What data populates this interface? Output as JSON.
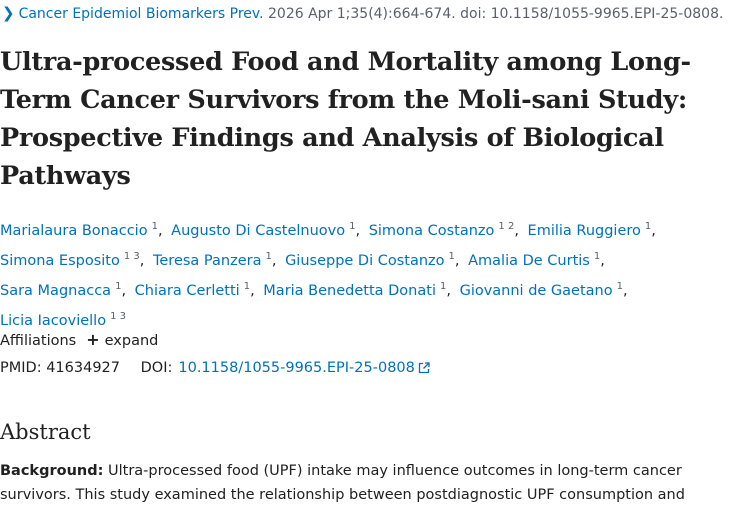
{
  "citation": {
    "journal": "Cancer Epidemiol Biomarkers Prev.",
    "details": "2026 Apr 1;35(4):664-674. doi: 10.1158/1055-9965.EPI-25-0808."
  },
  "title": "Ultra-processed Food and Mortality among Long-Term Cancer Survivors from the Moli-sani Study: Prospective Findings and Analysis of Biological Pathways",
  "authors": [
    {
      "name": "Marialaura Bonaccio",
      "aff": "1"
    },
    {
      "name": "Augusto Di Castelnuovo",
      "aff": "1"
    },
    {
      "name": "Simona Costanzo",
      "aff": "1 2"
    },
    {
      "name": "Emilia Ruggiero",
      "aff": "1"
    },
    {
      "name": "Simona Esposito",
      "aff": "1 3"
    },
    {
      "name": "Teresa Panzera",
      "aff": "1"
    },
    {
      "name": "Giuseppe Di Costanzo",
      "aff": "1"
    },
    {
      "name": "Amalia De Curtis",
      "aff": "1"
    },
    {
      "name": "Sara Magnacca",
      "aff": "1"
    },
    {
      "name": "Chiara Cerletti",
      "aff": "1"
    },
    {
      "name": "Maria Benedetta Donati",
      "aff": "1"
    },
    {
      "name": "Giovanni de Gaetano",
      "aff": "1"
    },
    {
      "name": "Licia Iacoviello",
      "aff": "1 3"
    }
  ],
  "affiliations": {
    "label": "Affiliations",
    "expand": "expand"
  },
  "ids": {
    "pmid_label": "PMID:",
    "pmid": "41634927",
    "doi_label": "DOI:",
    "doi": "10.1158/1055-9965.EPI-25-0808"
  },
  "abstract": {
    "heading": "Abstract",
    "background_label": "Background:",
    "background_text": "Ultra-processed food (UPF) intake may influence outcomes in long-term cancer survivors. This study examined the relationship between postdiagnostic UPF consumption and"
  },
  "icons": {
    "chevron": "chevron-right-icon",
    "plus": "plus-icon",
    "external": "external-link-icon"
  },
  "colors": {
    "link": "#0071bc",
    "text": "#212121",
    "muted": "#5b616b"
  }
}
